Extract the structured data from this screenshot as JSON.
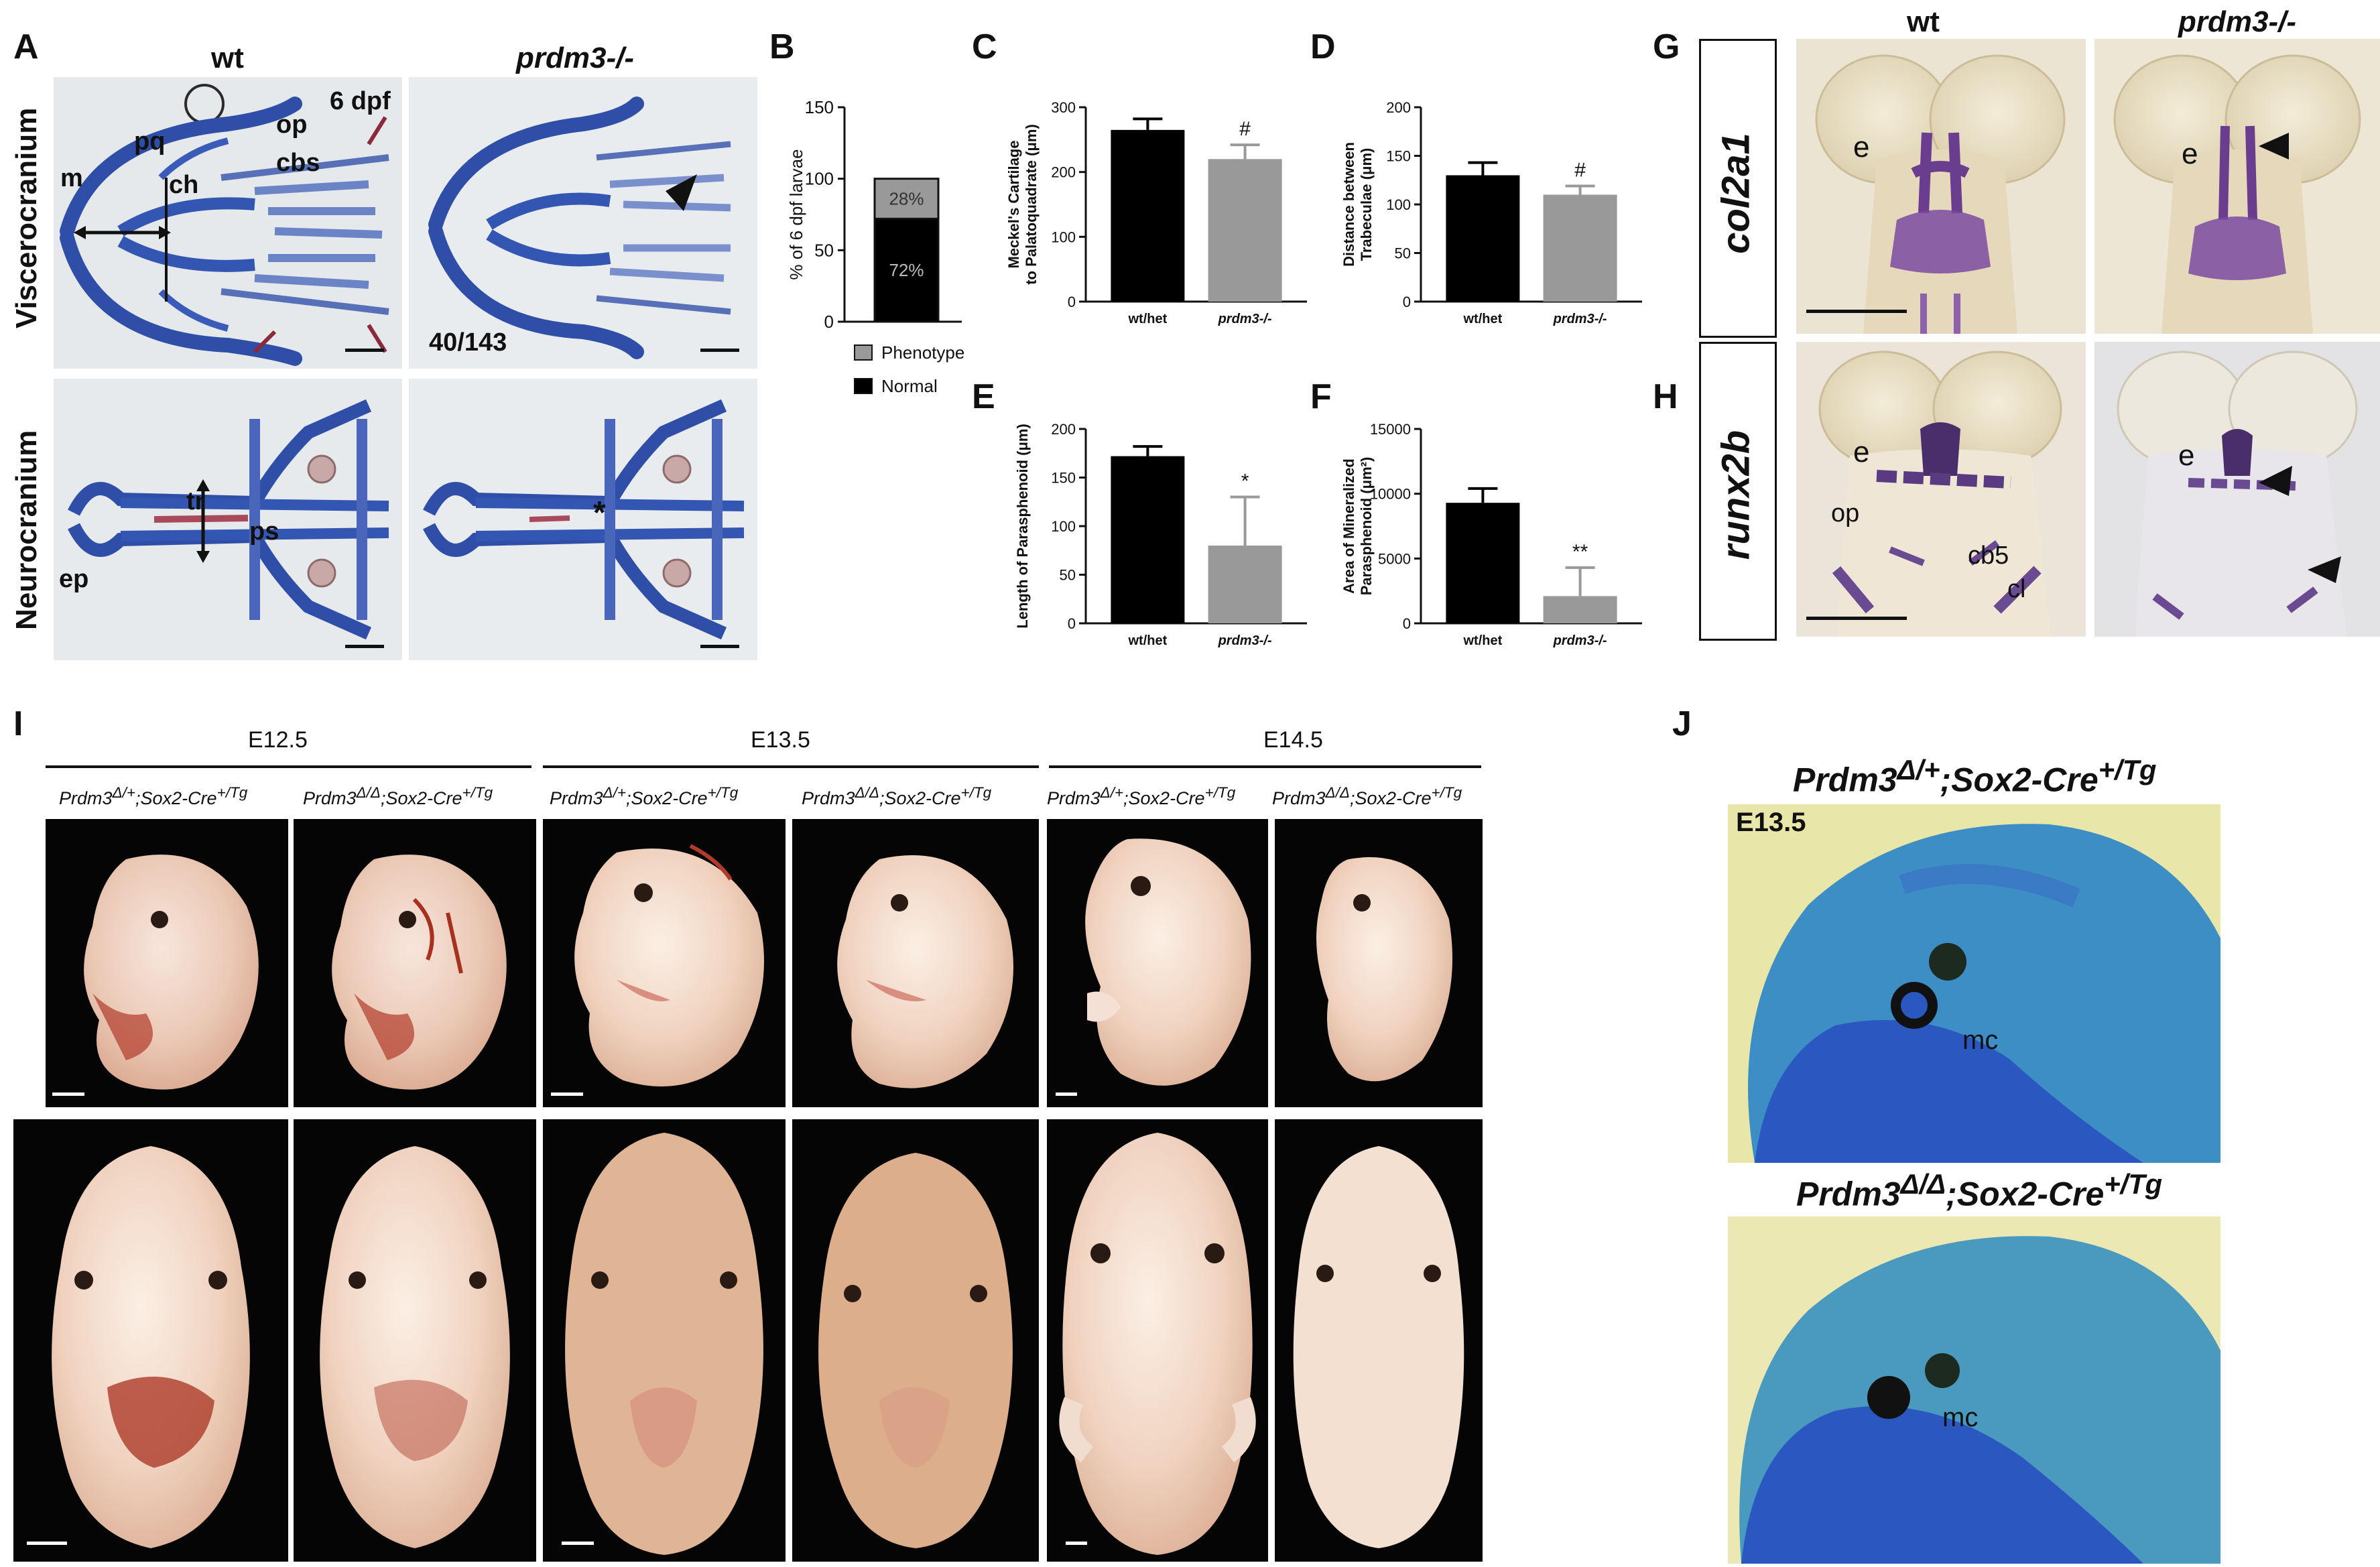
{
  "panel_letters": [
    "A",
    "B",
    "C",
    "D",
    "E",
    "F",
    "G",
    "H",
    "I",
    "J"
  ],
  "panelA": {
    "col_wt": "wt",
    "col_mut": "prdm3-/-",
    "row_top": "Viscerocranium",
    "row_bottom": "Neurocranium",
    "stage": "6 dpf",
    "fraction": "40/143",
    "labels_top": {
      "m": "m",
      "pq": "pq",
      "ch": "ch",
      "op": "op",
      "cbs": "cbs"
    },
    "labels_bottom": {
      "tr": "tr",
      "ps": "ps",
      "ep": "ep",
      "asterisk": "*"
    },
    "colors": {
      "cartilage": "#2f4ea8",
      "background": "#e9ecef"
    }
  },
  "panelG": {
    "col_wt": "wt",
    "col_mut": "prdm3-/-",
    "gene": "col2a1",
    "label_e": "e"
  },
  "panelH": {
    "gene": "runx2b",
    "label_e": "e",
    "label_op": "op",
    "label_cb5": "cb5",
    "label_cl": "cl"
  },
  "panelI": {
    "stages": [
      "E12.5",
      "E13.5",
      "E14.5"
    ],
    "genotypes": [
      {
        "base": "Prdm3",
        "sup1": "Δ/+",
        "mid": ";Sox2-Cre",
        "sup2": "+/Tg"
      },
      {
        "base": "Prdm3",
        "sup1": "Δ/Δ",
        "mid": ";Sox2-Cre",
        "sup2": "+/Tg"
      },
      {
        "base": "Prdm3",
        "sup1": "Δ/+",
        "mid": ";Sox2-Cre",
        "sup2": "+/Tg"
      },
      {
        "base": "Prdm3",
        "sup1": "Δ/Δ",
        "mid": ";Sox2-Cre",
        "sup2": "+/Tg"
      },
      {
        "base": "Prdm3",
        "sup1": "Δ/+",
        "mid": ";Sox2-Cre",
        "sup2": "+/Tg"
      },
      {
        "base": "Prdm3",
        "sup1": "Δ/Δ",
        "mid": ";Sox2-Cre",
        "sup2": "+/Tg"
      }
    ]
  },
  "panelJ": {
    "top": {
      "base": "Prdm3",
      "sup1": "Δ/+",
      "mid": ";Sox2-Cre",
      "sup2": "+/Tg"
    },
    "bottom": {
      "base": "Prdm3",
      "sup1": "Δ/Δ",
      "mid": ";Sox2-Cre",
      "sup2": "+/Tg"
    },
    "stage": "E13.5",
    "label_mc": "mc"
  },
  "chart_data": [
    {
      "panel": "B",
      "type": "bar",
      "stacked": true,
      "ylabel": "% of 6 dpf larvae",
      "ylim": [
        0,
        150
      ],
      "yticks": [
        "0",
        "50",
        "100",
        "150"
      ],
      "series": [
        {
          "name": "Normal",
          "values": [
            72
          ],
          "label": "72%",
          "color": "#000000"
        },
        {
          "name": "Phenotype",
          "values": [
            28
          ],
          "label": "28%",
          "color": "#999999"
        }
      ]
    },
    {
      "panel": "C",
      "type": "bar",
      "ylabel_lines": [
        "Meckel's Cartilage",
        "to Palatoquadrate (μm)"
      ],
      "categories": [
        "wt/het",
        "prdm3-/-"
      ],
      "values": [
        265,
        220
      ],
      "errors": [
        17,
        22
      ],
      "ylim": [
        0,
        300
      ],
      "yticks": [
        "0",
        "100",
        "200",
        "300"
      ],
      "sig": [
        "",
        "#"
      ],
      "colors": [
        "#000000",
        "#999999"
      ]
    },
    {
      "panel": "D",
      "type": "bar",
      "ylabel_lines": [
        "Distance between",
        "Trabeculae (μm)"
      ],
      "categories": [
        "wt/het",
        "prdm3-/-"
      ],
      "values": [
        130,
        110
      ],
      "errors": [
        13,
        9
      ],
      "ylim": [
        0,
        200
      ],
      "yticks": [
        "0",
        "50",
        "100",
        "150",
        "200"
      ],
      "sig": [
        "",
        "#"
      ],
      "colors": [
        "#000000",
        "#999999"
      ]
    },
    {
      "panel": "E",
      "type": "bar",
      "ylabel_lines": [
        "Length of Parasphenoid (μm)"
      ],
      "categories": [
        "wt/het",
        "prdm3-/-"
      ],
      "values": [
        172,
        80
      ],
      "errors": [
        10,
        50
      ],
      "ylim": [
        0,
        200
      ],
      "yticks": [
        "0",
        "50",
        "100",
        "150",
        "200"
      ],
      "sig": [
        "",
        "*"
      ],
      "colors": [
        "#000000",
        "#999999"
      ]
    },
    {
      "panel": "F",
      "type": "bar",
      "ylabel_lines": [
        "Area of Mineralized",
        "Parasphenoid (μm²)"
      ],
      "categories": [
        "wt/het",
        "prdm3-/-"
      ],
      "values": [
        9300,
        2100
      ],
      "errors": [
        1100,
        2200
      ],
      "ylim": [
        0,
        15000
      ],
      "yticks": [
        "0",
        "5000",
        "10000",
        "15000"
      ],
      "sig": [
        "",
        "**"
      ],
      "colors": [
        "#000000",
        "#999999"
      ]
    }
  ]
}
